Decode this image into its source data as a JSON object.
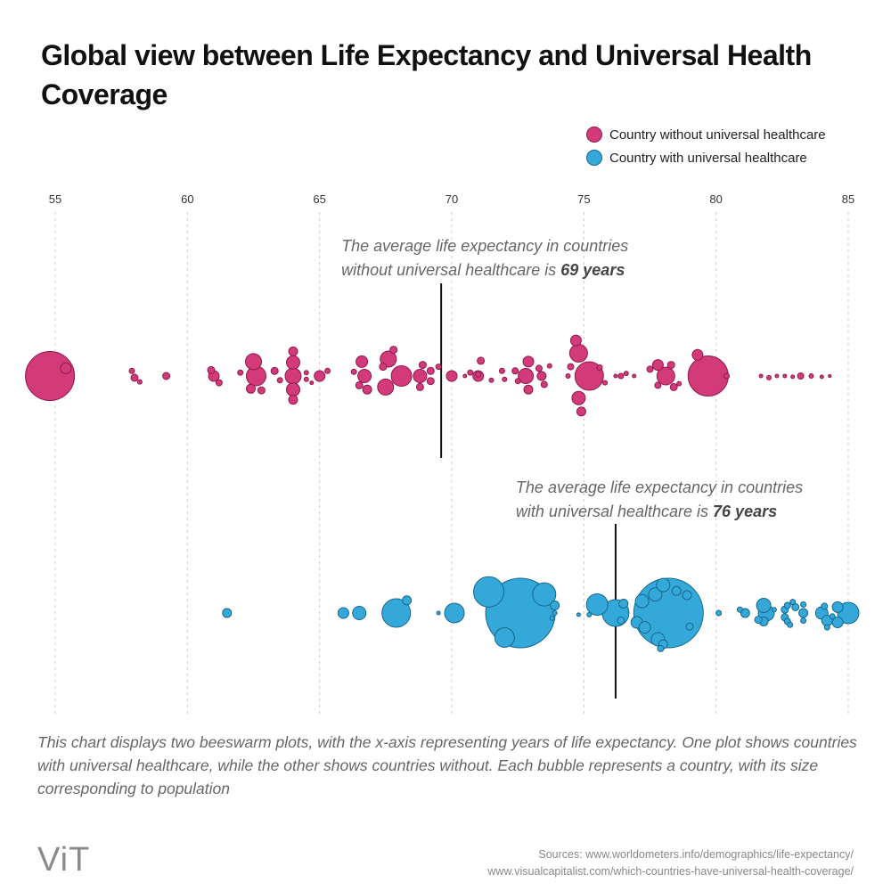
{
  "title": "Global view between Life Expectancy and Universal Health Coverage",
  "legend": [
    {
      "label": "Country without universal healthcare",
      "color": "#d23a7a"
    },
    {
      "label": "Country with universal healthcare",
      "color": "#34a8d8"
    }
  ],
  "colors": {
    "without_fill": "#d23a7a",
    "without_stroke": "#8e1a4d",
    "with_fill": "#34a8d8",
    "with_stroke": "#16678c",
    "grid": "#cccccc",
    "avg_line": "#111111"
  },
  "chart_data": {
    "type": "scatter",
    "subtype": "beeswarm",
    "title": "Global view between Life Expectancy and Universal Health Coverage",
    "xlabel": "",
    "ylabel": "",
    "xlim": [
      55,
      85
    ],
    "xticks": [
      55,
      60,
      65,
      70,
      75,
      80,
      85
    ],
    "grid": true,
    "legend_position": "top-right",
    "annotations": [
      {
        "series": "without",
        "x": 69.6,
        "line1": "The average life expectancy in countries",
        "line2_prefix": "without universal healthcare is ",
        "value": "69 years"
      },
      {
        "series": "with",
        "x": 76.2,
        "line1": "The average life expectancy in countries",
        "line2_prefix": "with universal healthcare is ",
        "value": "76 years"
      }
    ],
    "series": [
      {
        "name": "Country without universal healthcare",
        "key": "without",
        "average": 69,
        "points": [
          {
            "x": 54.8,
            "size": 5.5,
            "lane": 0
          },
          {
            "x": 55.4,
            "size": 1.2,
            "lane": -0.45
          },
          {
            "x": 57.9,
            "size": 0.6,
            "lane": -0.3
          },
          {
            "x": 58.0,
            "size": 0.8,
            "lane": 0.1
          },
          {
            "x": 58.2,
            "size": 0.5,
            "lane": 0.35
          },
          {
            "x": 59.2,
            "size": 0.8,
            "lane": 0
          },
          {
            "x": 60.9,
            "size": 0.8,
            "lane": -0.35
          },
          {
            "x": 61.0,
            "size": 1.2,
            "lane": 0
          },
          {
            "x": 61.2,
            "size": 0.7,
            "lane": 0.4
          },
          {
            "x": 62.0,
            "size": 0.6,
            "lane": -0.2
          },
          {
            "x": 62.6,
            "size": 2.2,
            "lane": 0
          },
          {
            "x": 62.5,
            "size": 1.8,
            "lane": -0.85
          },
          {
            "x": 62.4,
            "size": 1.0,
            "lane": 0.75
          },
          {
            "x": 62.8,
            "size": 0.8,
            "lane": 0.85
          },
          {
            "x": 63.3,
            "size": 0.8,
            "lane": -0.3
          },
          {
            "x": 63.5,
            "size": 0.6,
            "lane": 0.25
          },
          {
            "x": 64.0,
            "size": 1.0,
            "lane": -1.45
          },
          {
            "x": 64.0,
            "size": 1.5,
            "lane": -0.8
          },
          {
            "x": 64.0,
            "size": 1.8,
            "lane": 0
          },
          {
            "x": 64.0,
            "size": 1.5,
            "lane": 0.8
          },
          {
            "x": 64.0,
            "size": 1.0,
            "lane": 1.4
          },
          {
            "x": 64.5,
            "size": 0.5,
            "lane": -0.2
          },
          {
            "x": 64.5,
            "size": 0.5,
            "lane": 0.2
          },
          {
            "x": 64.7,
            "size": 0.4,
            "lane": 0.4
          },
          {
            "x": 65.0,
            "size": 1.2,
            "lane": 0
          },
          {
            "x": 65.3,
            "size": 0.6,
            "lane": -0.3
          },
          {
            "x": 66.3,
            "size": 0.6,
            "lane": -0.25
          },
          {
            "x": 66.6,
            "size": 1.3,
            "lane": -0.85
          },
          {
            "x": 66.7,
            "size": 1.5,
            "lane": 0
          },
          {
            "x": 66.5,
            "size": 0.8,
            "lane": 0.55
          },
          {
            "x": 66.8,
            "size": 1.0,
            "lane": 0.8
          },
          {
            "x": 67.4,
            "size": 0.8,
            "lane": -0.55
          },
          {
            "x": 67.6,
            "size": 1.8,
            "lane": -1.0
          },
          {
            "x": 67.5,
            "size": 1.8,
            "lane": 0.65
          },
          {
            "x": 68.1,
            "size": 2.3,
            "lane": 0
          },
          {
            "x": 67.8,
            "size": 0.8,
            "lane": -1.55
          },
          {
            "x": 68.8,
            "size": 1.5,
            "lane": 0
          },
          {
            "x": 68.9,
            "size": 0.8,
            "lane": -0.65
          },
          {
            "x": 68.8,
            "size": 0.8,
            "lane": 0.65
          },
          {
            "x": 69.2,
            "size": 0.8,
            "lane": -0.3
          },
          {
            "x": 69.2,
            "size": 0.8,
            "lane": 0.3
          },
          {
            "x": 69.5,
            "size": 0.6,
            "lane": -0.55
          },
          {
            "x": 70.0,
            "size": 1.2,
            "lane": 0
          },
          {
            "x": 70.5,
            "size": 0.4,
            "lane": 0
          },
          {
            "x": 70.7,
            "size": 0.6,
            "lane": -0.2
          },
          {
            "x": 71.0,
            "size": 0.6,
            "lane": -0.1
          },
          {
            "x": 71.0,
            "size": 1.2,
            "lane": 0
          },
          {
            "x": 71.1,
            "size": 0.8,
            "lane": -0.9
          },
          {
            "x": 71.5,
            "size": 0.5,
            "lane": 0.25
          },
          {
            "x": 71.9,
            "size": 0.6,
            "lane": -0.3
          },
          {
            "x": 72.0,
            "size": 0.5,
            "lane": 0.2
          },
          {
            "x": 72.4,
            "size": 0.7,
            "lane": -0.3
          },
          {
            "x": 72.5,
            "size": 0.6,
            "lane": 0.3
          },
          {
            "x": 72.8,
            "size": 1.7,
            "lane": 0
          },
          {
            "x": 72.9,
            "size": 1.2,
            "lane": -0.85
          },
          {
            "x": 72.9,
            "size": 1.0,
            "lane": 0.8
          },
          {
            "x": 73.3,
            "size": 0.7,
            "lane": -0.45
          },
          {
            "x": 73.4,
            "size": 1.0,
            "lane": 0
          },
          {
            "x": 73.5,
            "size": 0.7,
            "lane": 0.5
          },
          {
            "x": 73.7,
            "size": 0.5,
            "lane": -0.6
          },
          {
            "x": 74.5,
            "size": 0.7,
            "lane": -0.55
          },
          {
            "x": 74.4,
            "size": 0.5,
            "lane": 0
          },
          {
            "x": 74.8,
            "size": 2.0,
            "lane": -1.35
          },
          {
            "x": 74.7,
            "size": 1.2,
            "lane": -2.1
          },
          {
            "x": 75.2,
            "size": 3.2,
            "lane": 0
          },
          {
            "x": 74.8,
            "size": 1.5,
            "lane": 1.3
          },
          {
            "x": 74.9,
            "size": 1.0,
            "lane": 2.1
          },
          {
            "x": 75.6,
            "size": 0.6,
            "lane": -0.5
          },
          {
            "x": 75.8,
            "size": 0.5,
            "lane": 0.4
          },
          {
            "x": 76.2,
            "size": 0.4,
            "lane": 0
          },
          {
            "x": 76.4,
            "size": 0.6,
            "lane": 0
          },
          {
            "x": 76.6,
            "size": 0.5,
            "lane": -0.15
          },
          {
            "x": 76.9,
            "size": 0.4,
            "lane": 0
          },
          {
            "x": 77.5,
            "size": 0.7,
            "lane": -0.4
          },
          {
            "x": 77.8,
            "size": 1.2,
            "lane": -0.65
          },
          {
            "x": 78.1,
            "size": 2.0,
            "lane": 0
          },
          {
            "x": 78.3,
            "size": 0.8,
            "lane": -0.65
          },
          {
            "x": 77.8,
            "size": 0.7,
            "lane": 0.55
          },
          {
            "x": 78.4,
            "size": 0.8,
            "lane": 0.65
          },
          {
            "x": 78.6,
            "size": 0.5,
            "lane": 0.45
          },
          {
            "x": 79.3,
            "size": 1.2,
            "lane": -1.25
          },
          {
            "x": 79.7,
            "size": 4.5,
            "lane": 0
          },
          {
            "x": 80.4,
            "size": 0.6,
            "lane": 0
          },
          {
            "x": 81.7,
            "size": 0.4,
            "lane": 0
          },
          {
            "x": 82.0,
            "size": 0.5,
            "lane": 0.1
          },
          {
            "x": 82.3,
            "size": 0.4,
            "lane": 0
          },
          {
            "x": 82.6,
            "size": 0.4,
            "lane": 0
          },
          {
            "x": 82.9,
            "size": 0.4,
            "lane": 0.05
          },
          {
            "x": 83.2,
            "size": 0.7,
            "lane": 0
          },
          {
            "x": 83.6,
            "size": 0.5,
            "lane": 0
          },
          {
            "x": 84.0,
            "size": 0.4,
            "lane": 0.05
          },
          {
            "x": 84.3,
            "size": 0.3,
            "lane": 0
          }
        ]
      },
      {
        "name": "Country with universal healthcare",
        "key": "with",
        "average": 76,
        "points": [
          {
            "x": 61.5,
            "size": 1.0,
            "lane": 0
          },
          {
            "x": 65.9,
            "size": 1.2,
            "lane": 0
          },
          {
            "x": 66.5,
            "size": 1.5,
            "lane": 0
          },
          {
            "x": 67.9,
            "size": 3.2,
            "lane": 0
          },
          {
            "x": 68.3,
            "size": 1.0,
            "lane": -0.75
          },
          {
            "x": 69.5,
            "size": 0.4,
            "lane": 0
          },
          {
            "x": 70.1,
            "size": 2.2,
            "lane": 0
          },
          {
            "x": 71.4,
            "size": 3.4,
            "lane": -1.25
          },
          {
            "x": 72.6,
            "size": 7.8,
            "lane": 0
          },
          {
            "x": 72.0,
            "size": 2.2,
            "lane": 1.45
          },
          {
            "x": 73.5,
            "size": 2.6,
            "lane": -1.1
          },
          {
            "x": 73.9,
            "size": 1.0,
            "lane": -0.45
          },
          {
            "x": 73.9,
            "size": 0.5,
            "lane": 0
          },
          {
            "x": 73.8,
            "size": 0.5,
            "lane": 0.3
          },
          {
            "x": 74.8,
            "size": 0.4,
            "lane": 0.1
          },
          {
            "x": 75.5,
            "size": 2.4,
            "lane": -0.5
          },
          {
            "x": 75.2,
            "size": 0.5,
            "lane": 0.1
          },
          {
            "x": 76.2,
            "size": 3.0,
            "lane": 0
          },
          {
            "x": 76.5,
            "size": 1.0,
            "lane": -0.55
          },
          {
            "x": 76.4,
            "size": 0.8,
            "lane": 0.45
          },
          {
            "x": 77.2,
            "size": 1.5,
            "lane": -0.7
          },
          {
            "x": 77.0,
            "size": 1.3,
            "lane": 0.55
          },
          {
            "x": 77.3,
            "size": 1.3,
            "lane": 0.85
          },
          {
            "x": 77.7,
            "size": 1.5,
            "lane": -1.1
          },
          {
            "x": 78.2,
            "size": 7.8,
            "lane": 0
          },
          {
            "x": 78.0,
            "size": 1.5,
            "lane": -1.65
          },
          {
            "x": 78.5,
            "size": 1.0,
            "lane": -1.3
          },
          {
            "x": 78.9,
            "size": 1.0,
            "lane": -1.05
          },
          {
            "x": 77.8,
            "size": 1.5,
            "lane": 1.55
          },
          {
            "x": 78.0,
            "size": 1.0,
            "lane": 1.85
          },
          {
            "x": 77.9,
            "size": 0.7,
            "lane": 2.1
          },
          {
            "x": 79.0,
            "size": 0.8,
            "lane": 0.8
          },
          {
            "x": 80.1,
            "size": 0.6,
            "lane": 0
          },
          {
            "x": 80.9,
            "size": 0.6,
            "lane": -0.2
          },
          {
            "x": 81.1,
            "size": 1.0,
            "lane": 0
          },
          {
            "x": 81.6,
            "size": 0.8,
            "lane": 0.4
          },
          {
            "x": 81.8,
            "size": 1.6,
            "lane": -0.45
          },
          {
            "x": 81.9,
            "size": 1.8,
            "lane": 0
          },
          {
            "x": 81.8,
            "size": 1.0,
            "lane": 0.5
          },
          {
            "x": 82.2,
            "size": 0.5,
            "lane": -0.2
          },
          {
            "x": 82.7,
            "size": 0.7,
            "lane": -0.45
          },
          {
            "x": 82.6,
            "size": 0.8,
            "lane": -0.2
          },
          {
            "x": 82.6,
            "size": 0.8,
            "lane": 0.25
          },
          {
            "x": 82.7,
            "size": 0.7,
            "lane": 0.5
          },
          {
            "x": 82.9,
            "size": 0.6,
            "lane": -0.65
          },
          {
            "x": 82.8,
            "size": 0.6,
            "lane": 0.7
          },
          {
            "x": 83.0,
            "size": 0.8,
            "lane": -0.35
          },
          {
            "x": 83.3,
            "size": 1.0,
            "lane": 0
          },
          {
            "x": 83.3,
            "size": 0.6,
            "lane": -0.5
          },
          {
            "x": 83.3,
            "size": 0.6,
            "lane": 0.45
          },
          {
            "x": 84.0,
            "size": 1.4,
            "lane": 0
          },
          {
            "x": 84.2,
            "size": 1.2,
            "lane": 0.45
          },
          {
            "x": 84.1,
            "size": 0.7,
            "lane": -0.4
          },
          {
            "x": 84.4,
            "size": 0.6,
            "lane": 0.2
          },
          {
            "x": 84.6,
            "size": 1.2,
            "lane": -0.35
          },
          {
            "x": 84.6,
            "size": 1.2,
            "lane": 0.55
          },
          {
            "x": 84.2,
            "size": 0.6,
            "lane": 0.85
          },
          {
            "x": 85.0,
            "size": 2.4,
            "lane": 0
          }
        ]
      }
    ]
  },
  "description": "This chart displays two beeswarm plots, with the x-axis representing years of life expectancy. One plot shows countries with universal healthcare, while the other shows countries without. Each bubble represents a country, with its size corresponding to population",
  "logo": "ViT",
  "sources": {
    "line1": "Sources: www.worldometers.info/demographics/life-expectancy/",
    "line2": "www.visualcapitalist.com/which-countries-have-universal-health-coverage/"
  }
}
